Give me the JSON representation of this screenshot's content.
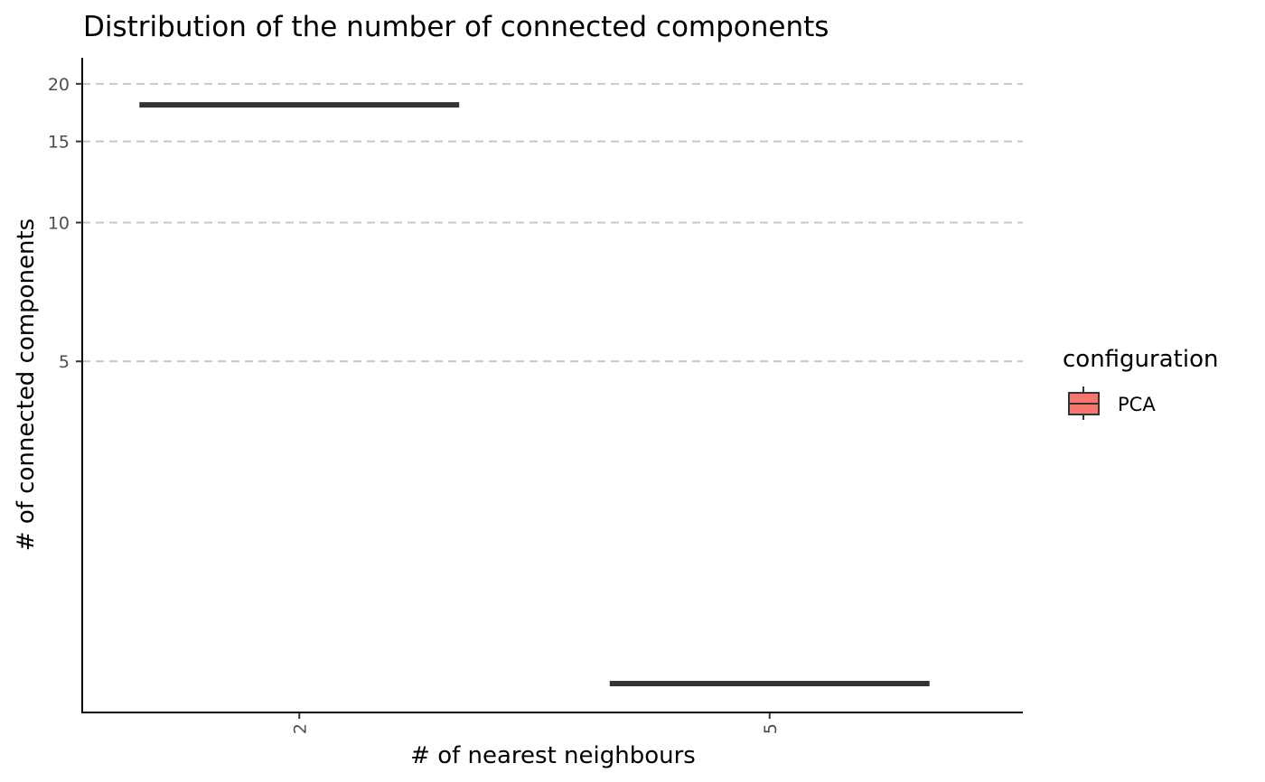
{
  "chart_data": {
    "type": "box",
    "title": "Distribution of the number of connected components",
    "xlabel": "# of nearest neighbours",
    "ylabel": "# of connected components",
    "categories": [
      "2",
      "5"
    ],
    "y_scale": "log10",
    "ylim": [
      1,
      21
    ],
    "y_ticks": [
      5,
      10,
      15,
      20
    ],
    "grid": "major-y dashed",
    "series": [
      {
        "name": "PCA",
        "color": "#F8766D",
        "values": [
          18,
          1
        ]
      }
    ],
    "legend": {
      "title": "configuration",
      "position": "right"
    }
  }
}
